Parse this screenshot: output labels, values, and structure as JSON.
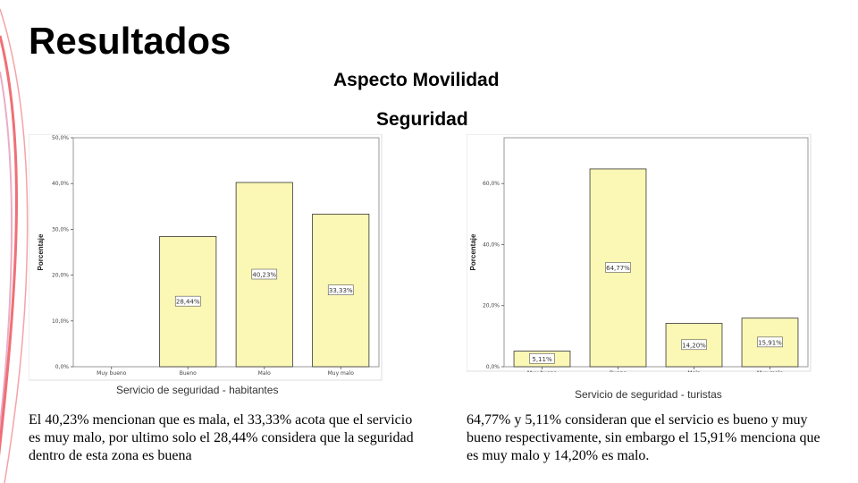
{
  "header": {
    "title": "Resultados",
    "subtitle": "Aspecto Movilidad",
    "section": "Seguridad"
  },
  "colors": {
    "bar_fill": "#fbf7b4",
    "bar_stroke": "#333333",
    "plot_border": "#999999",
    "decoration_red": "#e8333c"
  },
  "chart_data": [
    {
      "type": "bar",
      "categories": [
        "Muy bueno",
        "Bueno",
        "Malo",
        "Muy malo"
      ],
      "values": [
        0,
        28.44,
        40.23,
        33.33
      ],
      "data_labels": [
        "",
        "28,44%",
        "40,23%",
        "33,33%"
      ],
      "ylabel": "Porcentaje",
      "xlabel": "Servicio de seguridad - habitantes",
      "yticks": [
        "0,0%",
        "10,0%",
        "20,0%",
        "30,0%",
        "40,0%",
        "50,0%"
      ],
      "ylim": [
        0,
        50
      ],
      "grid": false
    },
    {
      "type": "bar",
      "categories": [
        "Muy bueno",
        "Bueno",
        "Malo",
        "Muy malo"
      ],
      "values": [
        5.11,
        64.77,
        14.2,
        15.91
      ],
      "data_labels": [
        "5,11%",
        "64,77%",
        "14,20%",
        "15,91%"
      ],
      "ylabel": "Porcentaje",
      "xlabel": "Servicio de seguridad - turistas",
      "yticks": [
        "0,0%",
        "20,0%",
        "40,0%",
        "60,0%"
      ],
      "ylim": [
        0,
        75
      ],
      "grid": false
    }
  ],
  "paragraphs": {
    "left": "El 40,23% mencionan que es mala, el 33,33% acota que el servicio es muy malo, por ultimo solo el 28,44% considera que la seguridad dentro de esta zona es buena",
    "right": "64,77% y 5,11% consideran que el servicio es bueno y muy bueno respectivamente, sin embargo el 15,91% menciona que es muy malo y 14,20% es malo."
  }
}
